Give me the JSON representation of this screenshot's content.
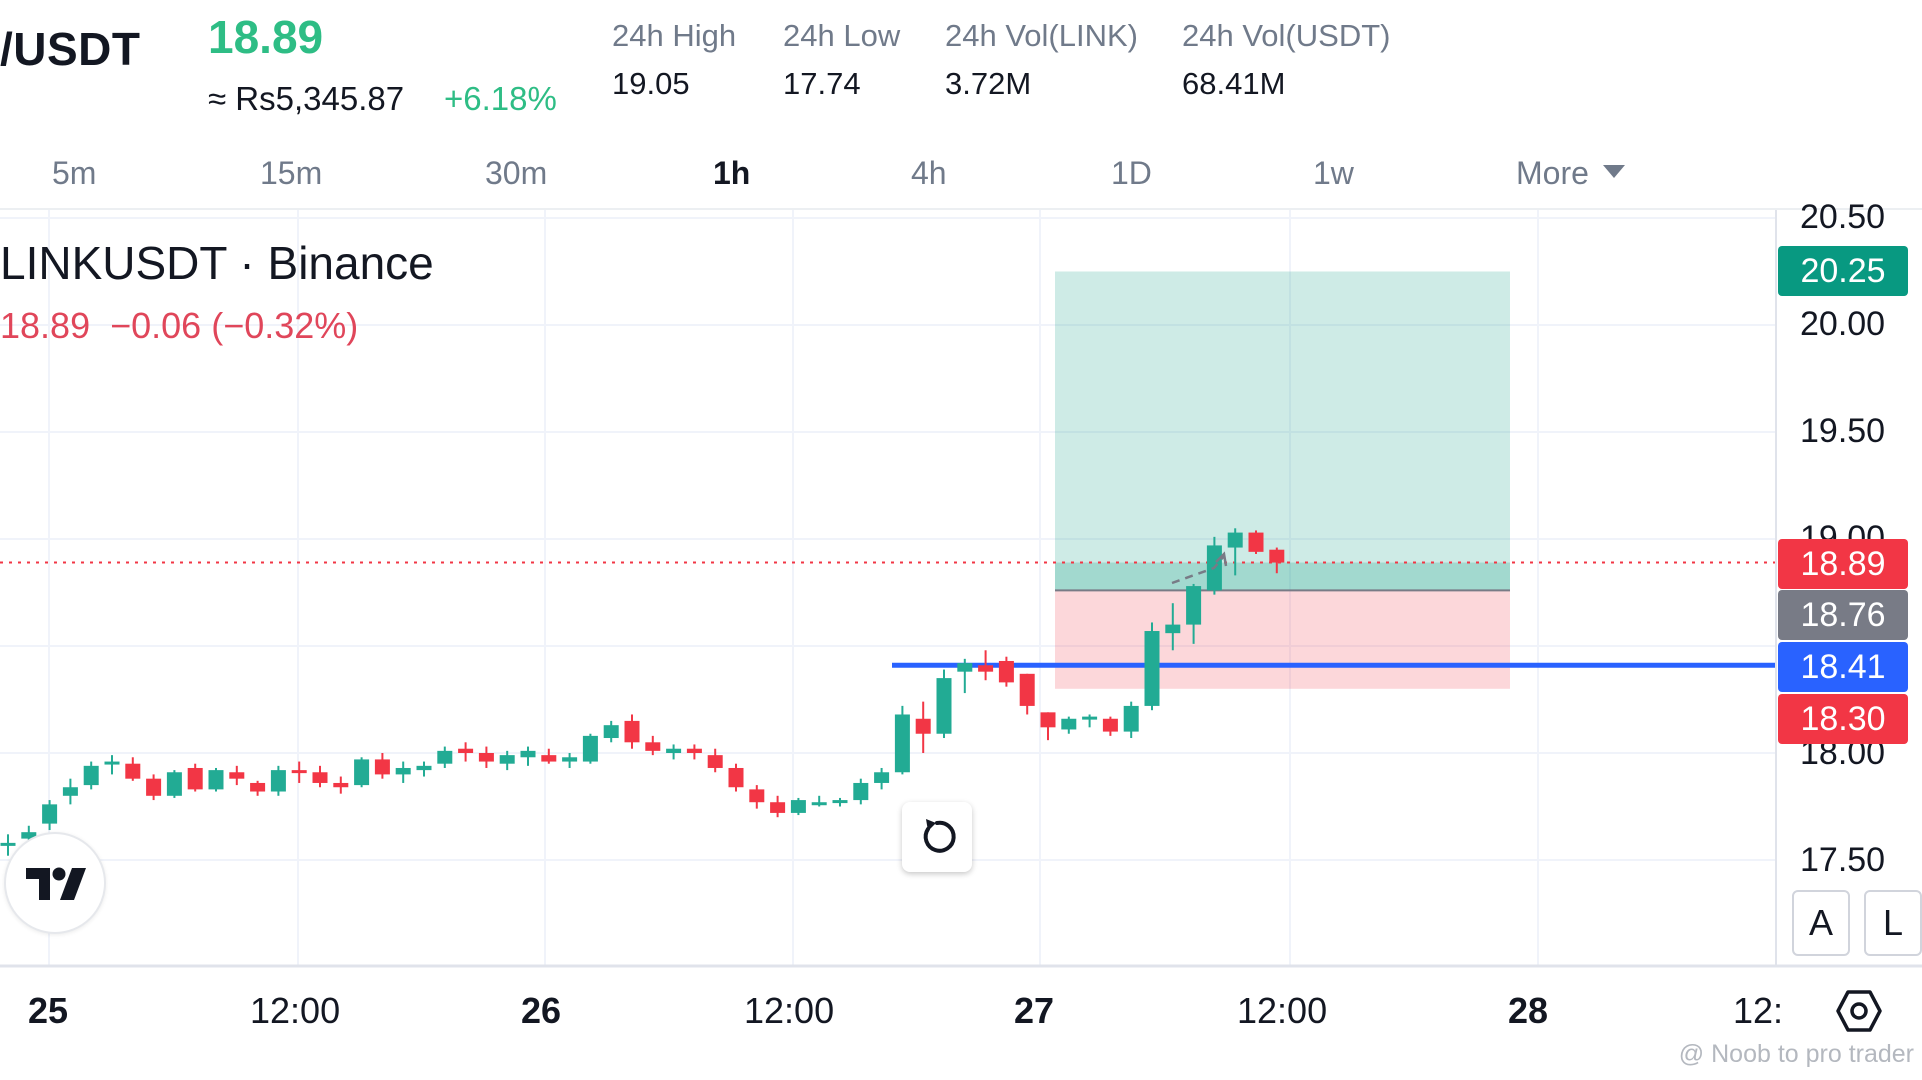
{
  "header": {
    "pair": "/USDT",
    "last_price": "18.89",
    "approx_value": "≈ Rs5,345.87",
    "change_pct": "+6.18%",
    "stats": [
      {
        "label": "24h High",
        "value": "19.05"
      },
      {
        "label": "24h Low",
        "value": "17.74"
      },
      {
        "label": "24h Vol(LINK)",
        "value": "3.72M"
      },
      {
        "label": "24h Vol(USDT)",
        "value": "68.41M"
      }
    ]
  },
  "timeframes": {
    "items": [
      "5m",
      "15m",
      "30m",
      "1h",
      "4h",
      "1D",
      "1w"
    ],
    "active": "1h",
    "more_label": "More"
  },
  "chart": {
    "symbol_title": "LINKUSDT · Binance",
    "legend_price": "18.89",
    "legend_change": "−0.06 (−0.32%)",
    "price_axis_ticks": [
      "20.50",
      "20.00",
      "19.50",
      "19.00",
      "18.00",
      "17.50"
    ],
    "time_axis_ticks": [
      {
        "label": "25",
        "bold": true
      },
      {
        "label": "12:00",
        "bold": false
      },
      {
        "label": "26",
        "bold": true
      },
      {
        "label": "12:00",
        "bold": false
      },
      {
        "label": "27",
        "bold": true
      },
      {
        "label": "12:00",
        "bold": false
      },
      {
        "label": "28",
        "bold": true
      },
      {
        "label": "12:",
        "bold": false
      }
    ],
    "price_tags": [
      {
        "label": "20.25",
        "color": "#089981"
      },
      {
        "label": "18.89",
        "color": "#f23645"
      },
      {
        "label": "18.76",
        "color": "#787b86"
      },
      {
        "label": "18.41",
        "color": "#2962ff"
      },
      {
        "label": "18.30",
        "color": "#f23645"
      }
    ],
    "up_color": "#22ab94",
    "down_color": "#f23645",
    "position": {
      "take_profit": 20.25,
      "entry": 18.76,
      "stop_loss": 18.3
    },
    "horizontal_line": 18.41,
    "last_price_line": 18.89,
    "axis_buttons": [
      "A",
      "L"
    ],
    "candles": [
      [
        17.58,
        17.62,
        17.52,
        17.58
      ],
      [
        17.6,
        17.66,
        17.55,
        17.63
      ],
      [
        17.67,
        17.78,
        17.64,
        17.76
      ],
      [
        17.8,
        17.88,
        17.76,
        17.84
      ],
      [
        17.85,
        17.96,
        17.83,
        17.94
      ],
      [
        17.95,
        17.99,
        17.9,
        17.96
      ],
      [
        17.95,
        17.98,
        17.87,
        17.88
      ],
      [
        17.88,
        17.9,
        17.78,
        17.8
      ],
      [
        17.8,
        17.92,
        17.79,
        17.91
      ],
      [
        17.93,
        17.95,
        17.82,
        17.83
      ],
      [
        17.83,
        17.93,
        17.82,
        17.92
      ],
      [
        17.91,
        17.94,
        17.85,
        17.88
      ],
      [
        17.86,
        17.87,
        17.8,
        17.82
      ],
      [
        17.82,
        17.94,
        17.8,
        17.92
      ],
      [
        17.92,
        17.96,
        17.86,
        17.91
      ],
      [
        17.91,
        17.94,
        17.84,
        17.86
      ],
      [
        17.86,
        17.89,
        17.81,
        17.84
      ],
      [
        17.85,
        17.98,
        17.84,
        17.97
      ],
      [
        17.97,
        18.0,
        17.88,
        17.9
      ],
      [
        17.9,
        17.96,
        17.86,
        17.93
      ],
      [
        17.92,
        17.96,
        17.89,
        17.94
      ],
      [
        17.95,
        18.03,
        17.93,
        18.01
      ],
      [
        18.02,
        18.05,
        17.96,
        18.0
      ],
      [
        18.0,
        18.03,
        17.93,
        17.96
      ],
      [
        17.95,
        18.01,
        17.92,
        17.99
      ],
      [
        17.98,
        18.03,
        17.94,
        18.01
      ],
      [
        17.99,
        18.02,
        17.95,
        17.96
      ],
      [
        17.96,
        18.0,
        17.93,
        17.98
      ],
      [
        17.96,
        18.09,
        17.95,
        18.08
      ],
      [
        18.07,
        18.15,
        18.05,
        18.13
      ],
      [
        18.15,
        18.18,
        18.02,
        18.05
      ],
      [
        18.05,
        18.08,
        17.99,
        18.01
      ],
      [
        18.0,
        18.04,
        17.97,
        18.02
      ],
      [
        18.02,
        18.04,
        17.97,
        18.0
      ],
      [
        17.99,
        18.02,
        17.91,
        17.93
      ],
      [
        17.93,
        17.95,
        17.82,
        17.84
      ],
      [
        17.83,
        17.85,
        17.74,
        17.77
      ],
      [
        17.77,
        17.8,
        17.7,
        17.72
      ],
      [
        17.72,
        17.79,
        17.71,
        17.78
      ],
      [
        17.77,
        17.8,
        17.75,
        17.77
      ],
      [
        17.78,
        17.79,
        17.75,
        17.78
      ],
      [
        17.78,
        17.88,
        17.76,
        17.86
      ],
      [
        17.86,
        17.93,
        17.83,
        17.91
      ],
      [
        17.91,
        18.22,
        17.9,
        18.18
      ],
      [
        18.16,
        18.24,
        18.0,
        18.09
      ],
      [
        18.09,
        18.39,
        18.07,
        18.35
      ],
      [
        18.38,
        18.44,
        18.28,
        18.42
      ],
      [
        18.41,
        18.48,
        18.34,
        18.38
      ],
      [
        18.43,
        18.45,
        18.31,
        18.33
      ],
      [
        18.37,
        18.37,
        18.18,
        18.22
      ],
      [
        18.19,
        18.19,
        18.06,
        18.12
      ],
      [
        18.11,
        18.17,
        18.09,
        18.16
      ],
      [
        18.16,
        18.18,
        18.12,
        18.17
      ],
      [
        18.16,
        18.17,
        18.08,
        18.1
      ],
      [
        18.1,
        18.24,
        18.07,
        18.22
      ],
      [
        18.22,
        18.61,
        18.2,
        18.57
      ],
      [
        18.56,
        18.7,
        18.48,
        18.6
      ],
      [
        18.6,
        18.79,
        18.51,
        18.78
      ],
      [
        18.76,
        19.01,
        18.74,
        18.97
      ],
      [
        18.96,
        19.05,
        18.83,
        19.03
      ],
      [
        19.03,
        19.04,
        18.93,
        18.94
      ],
      [
        18.95,
        18.96,
        18.84,
        18.89
      ]
    ]
  }
}
